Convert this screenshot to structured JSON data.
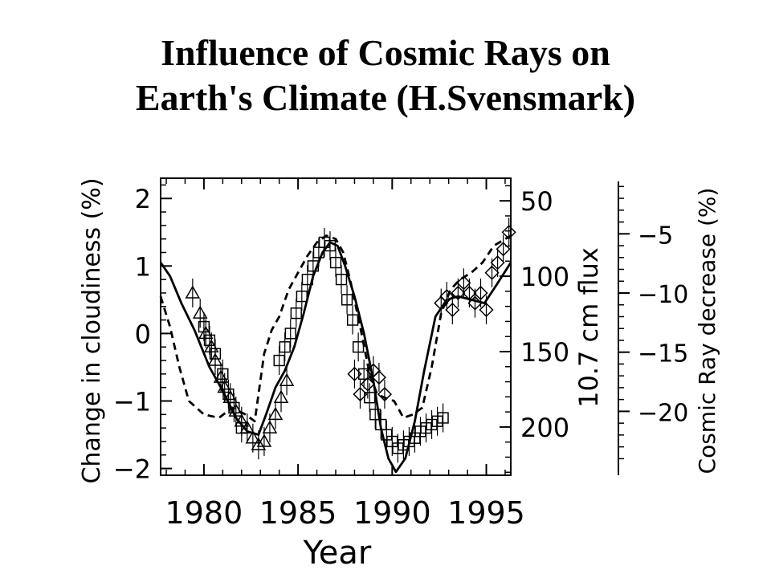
{
  "slide": {
    "title_line1": "Influence of Cosmic Rays on",
    "title_line2": "Earth's Climate (H.Svensmark)"
  },
  "colors": {
    "ink": "#000000",
    "background": "#ffffff"
  },
  "chart_data": {
    "type": "line",
    "xlabel": "Year",
    "xlim": [
      1977.7,
      1996.3
    ],
    "x_ticks": [
      1980,
      1985,
      1990,
      1995
    ],
    "left_axis": {
      "label": "Change in cloudiness (%)",
      "ylim": [
        -2.1,
        2.3
      ],
      "ticks": [
        2,
        1,
        0,
        -1,
        -2
      ]
    },
    "flux_axis": {
      "label": "10.7 cm flux",
      "inverted": true,
      "ticks": [
        50,
        100,
        150,
        200
      ],
      "range": [
        35,
        232
      ]
    },
    "cosmic_axis": {
      "label": "Cosmic Ray decrease (%)",
      "ticks": [
        -5,
        -10,
        -15,
        -20
      ],
      "range": [
        -25.4,
        -0.3
      ]
    },
    "grid": false,
    "series": [
      {
        "style": "solid",
        "axis": "left",
        "x": [
          1977.7,
          1978.2,
          1978.8,
          1979.5,
          1980.3,
          1981.0,
          1981.7,
          1982.3,
          1982.9,
          1983.3,
          1983.8,
          1984.3,
          1984.8,
          1985.3,
          1985.8,
          1986.3,
          1986.7,
          1987.1,
          1987.5,
          1988.0,
          1988.5,
          1989.0,
          1989.4,
          1989.8,
          1990.2,
          1990.7,
          1991.2,
          1991.7,
          1992.3,
          1992.9,
          1993.5,
          1994.2,
          1994.9,
          1995.5,
          1996.3
        ],
        "y": [
          1.05,
          0.85,
          0.45,
          0.05,
          -0.5,
          -0.85,
          -1.25,
          -1.45,
          -1.5,
          -1.2,
          -0.8,
          -0.55,
          -0.2,
          0.3,
          0.85,
          1.2,
          1.35,
          1.3,
          1.0,
          0.55,
          0.0,
          -0.7,
          -1.4,
          -1.85,
          -2.05,
          -1.85,
          -1.3,
          -0.55,
          0.25,
          0.5,
          0.55,
          0.5,
          0.45,
          0.7,
          1.05
        ]
      },
      {
        "style": "dashed",
        "axis": "left",
        "x": [
          1977.7,
          1978.2,
          1978.7,
          1979.2,
          1980.0,
          1980.8,
          1981.5,
          1982.2,
          1982.7,
          1983.2,
          1983.6,
          1984.0,
          1984.5,
          1985.0,
          1985.5,
          1986.0,
          1986.5,
          1987.0,
          1987.4,
          1987.8,
          1988.3,
          1988.8,
          1989.2,
          1989.6,
          1990.1,
          1990.6,
          1991.1,
          1991.6,
          1992.1,
          1992.6,
          1993.1,
          1993.6,
          1994.2,
          1994.8,
          1995.4,
          1996.0,
          1996.3
        ],
        "y": [
          0.55,
          0.1,
          -0.5,
          -1.0,
          -1.2,
          -1.25,
          -1.1,
          -1.2,
          -1.3,
          -0.3,
          0.05,
          0.25,
          0.65,
          0.9,
          1.15,
          1.35,
          1.45,
          1.4,
          1.2,
          0.75,
          0.1,
          -0.6,
          -0.9,
          -0.95,
          -1.0,
          -1.25,
          -1.2,
          -1.1,
          -0.5,
          0.3,
          0.65,
          0.8,
          0.9,
          1.05,
          1.3,
          1.4,
          1.45
        ]
      }
    ],
    "observations": [
      {
        "marker": "triangle",
        "axis": "left",
        "x": [
          1979.4,
          1979.8,
          1980.1,
          1980.4,
          1980.6,
          1980.9,
          1981.1,
          1981.4,
          1981.7,
          1982.0,
          1982.3,
          1982.6,
          1982.9,
          1983.2,
          1983.5,
          1983.8,
          1984.1,
          1984.4
        ],
        "y": [
          0.6,
          0.3,
          0.0,
          -0.2,
          -0.4,
          -0.65,
          -0.8,
          -0.95,
          -1.15,
          -1.3,
          -1.4,
          -1.55,
          -1.65,
          -1.6,
          -1.4,
          -1.2,
          -0.95,
          -0.7
        ]
      },
      {
        "marker": "square",
        "axis": "left",
        "x": [
          1980.0,
          1980.3,
          1980.6,
          1981.0,
          1981.3,
          1981.6,
          1982.0,
          1984.0,
          1984.3,
          1984.6,
          1984.9,
          1985.2,
          1985.5,
          1985.8,
          1986.1,
          1986.4,
          1986.7,
          1987.0,
          1987.3,
          1987.6,
          1987.9,
          1988.2,
          1988.5,
          1988.8,
          1989.1,
          1989.4,
          1989.7,
          1990.0,
          1990.3,
          1990.6,
          1990.9,
          1991.2,
          1991.5,
          1991.8,
          1992.1,
          1992.4,
          1992.7
        ],
        "y": [
          0.1,
          -0.1,
          -0.3,
          -0.6,
          -0.9,
          -1.1,
          -1.4,
          -0.4,
          -0.2,
          0.0,
          0.3,
          0.55,
          0.8,
          1.0,
          1.2,
          1.35,
          1.3,
          1.05,
          0.8,
          0.5,
          0.2,
          -0.2,
          -0.6,
          -0.95,
          -1.2,
          -1.35,
          -1.5,
          -1.6,
          -1.7,
          -1.65,
          -1.6,
          -1.55,
          -1.45,
          -1.4,
          -1.35,
          -1.3,
          -1.25
        ]
      },
      {
        "marker": "diamond",
        "axis": "left",
        "x": [
          1988.0,
          1988.3,
          1988.7,
          1989.0,
          1989.3,
          1989.6,
          1992.6,
          1992.9,
          1993.2,
          1993.5,
          1993.8,
          1994.1,
          1994.4,
          1994.7,
          1995.0,
          1995.3,
          1995.6,
          1995.9,
          1996.2
        ],
        "y": [
          -0.6,
          -0.9,
          -0.75,
          -0.55,
          -0.65,
          -0.9,
          0.45,
          0.55,
          0.35,
          0.6,
          0.75,
          0.6,
          0.45,
          0.6,
          0.35,
          0.9,
          1.05,
          1.25,
          1.5
        ]
      }
    ]
  }
}
